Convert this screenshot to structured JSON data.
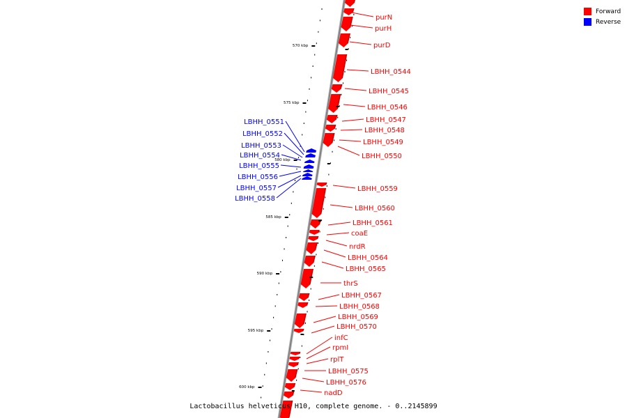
{
  "caption": "Lactobacillus helveticus H10, complete genome. - 0..2145899",
  "legend": [
    {
      "label": "Forward",
      "color": "#ff0000"
    },
    {
      "label": "Reverse",
      "color": "#0000ff"
    }
  ],
  "colors": {
    "forward": "#ff0000",
    "reverse": "#0000ff",
    "backbone": "#808080"
  },
  "ticks": [
    {
      "label": "570 kbp"
    },
    {
      "label": "575 kbp"
    },
    {
      "label": "580 kbp"
    },
    {
      "label": "585 kbp"
    },
    {
      "label": "590 kbp"
    },
    {
      "label": "595 kbp"
    },
    {
      "label": "600 kbp"
    }
  ],
  "forward_genes": [
    {
      "label": "purN"
    },
    {
      "label": "purH"
    },
    {
      "label": "purD"
    },
    {
      "label": "LBHH_0544"
    },
    {
      "label": "LBHH_0545"
    },
    {
      "label": "LBHH_0546"
    },
    {
      "label": "LBHH_0547"
    },
    {
      "label": "LBHH_0548"
    },
    {
      "label": "LBHH_0549"
    },
    {
      "label": "LBHH_0550"
    },
    {
      "label": "LBHH_0559"
    },
    {
      "label": "LBHH_0560"
    },
    {
      "label": "LBHH_0561"
    },
    {
      "label": "coaE"
    },
    {
      "label": "nrdR"
    },
    {
      "label": "LBHH_0564"
    },
    {
      "label": "LBHH_0565"
    },
    {
      "label": "thrS"
    },
    {
      "label": "LBHH_0567"
    },
    {
      "label": "LBHH_0568"
    },
    {
      "label": "LBHH_0569"
    },
    {
      "label": "LBHH_0570"
    },
    {
      "label": "infC"
    },
    {
      "label": "rpmI"
    },
    {
      "label": "rplT"
    },
    {
      "label": "LBHH_0575"
    },
    {
      "label": "LBHH_0576"
    },
    {
      "label": "nadD"
    }
  ],
  "reverse_genes": [
    {
      "label": "LBHH_0551"
    },
    {
      "label": "LBHH_0552"
    },
    {
      "label": "LBHH_0553"
    },
    {
      "label": "LBHH_0554"
    },
    {
      "label": "LBHH_0555"
    },
    {
      "label": "LBHH_0556"
    },
    {
      "label": "LBHH_0557"
    },
    {
      "label": "LBHH_0558"
    }
  ]
}
